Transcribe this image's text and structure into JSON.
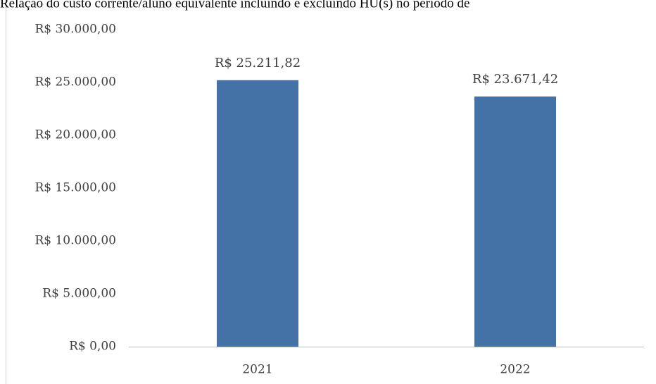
{
  "chart_data": {
    "type": "bar",
    "title": "Relação do custo corrente/aluno equivalente incluindo e excluindo HU(s) no período de",
    "categories": [
      "2021",
      "2022"
    ],
    "values": [
      25211.82,
      23671.42
    ],
    "value_labels": [
      "R$ 25.211,82",
      "R$ 23.671,42"
    ],
    "color": "#4472a6",
    "ylim": [
      0,
      30000
    ],
    "yticks": [
      {
        "value": 0,
        "label": "R$ 0,00"
      },
      {
        "value": 5000,
        "label": "R$ 5.000,00"
      },
      {
        "value": 10000,
        "label": "R$ 10.000,00"
      },
      {
        "value": 15000,
        "label": "R$ 15.000,00"
      },
      {
        "value": 20000,
        "label": "R$ 20.000,00"
      },
      {
        "value": 25000,
        "label": "R$ 25.000,00"
      },
      {
        "value": 30000,
        "label": "R$ 30.000,00"
      }
    ],
    "grid": false
  }
}
